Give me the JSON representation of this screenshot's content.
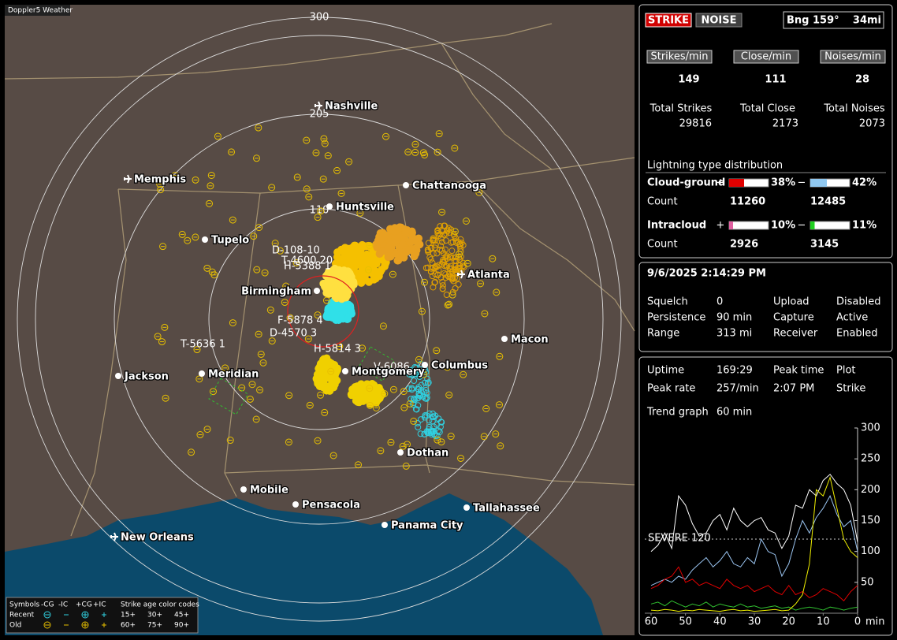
{
  "window_title": "Doppler5 Weather",
  "map": {
    "ring_labels": [
      "300",
      "205",
      "110"
    ],
    "cities": [
      "Nashville",
      "Memphis",
      "Chattanooga",
      "Huntsville",
      "Tupelo",
      "Atlanta",
      "Birmingham",
      "Macon",
      "Jackson",
      "Meridian",
      "Montgomery",
      "Columbus",
      "Dothan",
      "Mobile",
      "Pensacola",
      "Tallahassee",
      "Panama City",
      "New Orleans"
    ],
    "cells": [
      "D-108-10",
      "F-5878 4",
      "D-4570 3",
      "T-5636 1",
      "H-5388 1",
      "T-4600 20",
      "H-5814 3",
      "V-6086"
    ],
    "legend": {
      "symbols": "Symbols",
      "minus_cg": "-CG",
      "minus_ic": "-IC",
      "plus_cg": "+CG",
      "plus_ic": "+IC",
      "age_title": "Strike age color codes",
      "recent": "Recent",
      "old": "Old",
      "recent_ages": [
        "15+",
        "30+",
        "45+"
      ],
      "old_ages": [
        "60+",
        "75+",
        "90+"
      ]
    }
  },
  "panel": {
    "strike": "STRIKE",
    "noise": "NOISE",
    "bearing": "Bng 159°",
    "distance": "34mi",
    "rate_heads": [
      "Strikes/min",
      "Close/min",
      "Noises/min"
    ],
    "rates": [
      "149",
      "111",
      "28"
    ],
    "total_heads": [
      "Total Strikes",
      "Total Close",
      "Total Noises"
    ],
    "totals": [
      "29816",
      "2173",
      "2073"
    ],
    "dist_title": "Lightning type distribution",
    "cg_label": "Cloud-ground",
    "ic_label": "Intracloud",
    "count_label": "Count",
    "plus": "+",
    "minus": "−",
    "cg_plus": {
      "value": 38,
      "label": "38%"
    },
    "cg_minus": {
      "value": 42,
      "label": "42%"
    },
    "ic_plus": {
      "value": 10,
      "label": "10%"
    },
    "ic_minus": {
      "value": 11,
      "label": "11%"
    },
    "cg_counts": [
      "11260",
      "12485"
    ],
    "ic_counts": [
      "2926",
      "3145"
    ]
  },
  "status": {
    "datetime": "9/6/2025 2:14:29 PM",
    "rows": [
      [
        "Squelch",
        "0",
        "Upload",
        "Disabled"
      ],
      [
        "Persistence",
        "90 min",
        "Capture",
        "Active"
      ],
      [
        "Range",
        "313 mi",
        "Receiver",
        "Enabled"
      ]
    ]
  },
  "stats": {
    "rows": [
      [
        "Uptime",
        "169:29",
        "Peak time",
        "Plot"
      ],
      [
        "Peak rate",
        "257/min",
        "2:07 PM",
        "Strike"
      ],
      [
        "Trend graph",
        "60 min"
      ]
    ]
  },
  "chart_data": {
    "type": "line",
    "x": [
      60,
      58,
      56,
      54,
      52,
      50,
      48,
      46,
      44,
      42,
      40,
      38,
      36,
      34,
      32,
      30,
      28,
      26,
      24,
      22,
      20,
      18,
      16,
      14,
      12,
      10,
      8,
      6,
      4,
      2,
      0
    ],
    "xlim": [
      60,
      0
    ],
    "xticks": [
      60,
      50,
      40,
      30,
      20,
      10,
      0
    ],
    "x_unit": "min",
    "ylim": [
      0,
      300
    ],
    "yticks": [
      50,
      100,
      150,
      200,
      250,
      300
    ],
    "threshold": {
      "value": 120,
      "label": "SEVERE 120"
    },
    "series": [
      {
        "color": "#ffffff",
        "values": [
          100,
          110,
          130,
          105,
          190,
          175,
          145,
          125,
          130,
          150,
          160,
          135,
          170,
          150,
          140,
          150,
          155,
          135,
          130,
          105,
          125,
          175,
          170,
          200,
          190,
          215,
          225,
          210,
          200,
          175,
          115
        ]
      },
      {
        "color": "#9ac4f0",
        "values": [
          45,
          50,
          55,
          50,
          60,
          55,
          70,
          80,
          90,
          75,
          85,
          100,
          80,
          75,
          90,
          80,
          120,
          100,
          95,
          60,
          80,
          120,
          150,
          130,
          155,
          170,
          190,
          160,
          140,
          150,
          100
        ]
      },
      {
        "color": "#e00000",
        "values": [
          40,
          45,
          55,
          60,
          75,
          50,
          55,
          45,
          50,
          45,
          40,
          55,
          45,
          40,
          45,
          35,
          40,
          45,
          35,
          30,
          45,
          30,
          35,
          25,
          30,
          40,
          35,
          30,
          20,
          35,
          45
        ]
      },
      {
        "color": "#30c030",
        "values": [
          15,
          18,
          12,
          20,
          15,
          10,
          15,
          12,
          18,
          10,
          15,
          12,
          10,
          15,
          10,
          12,
          8,
          10,
          12,
          8,
          10,
          5,
          8,
          10,
          8,
          5,
          10,
          8,
          5,
          8,
          10
        ]
      },
      {
        "color": "#f0f000",
        "values": [
          5,
          4,
          6,
          5,
          3,
          5,
          4,
          6,
          5,
          4,
          3,
          5,
          6,
          4,
          5,
          3,
          4,
          5,
          6,
          4,
          5,
          15,
          30,
          80,
          200,
          190,
          220,
          170,
          120,
          100,
          90
        ]
      }
    ]
  }
}
